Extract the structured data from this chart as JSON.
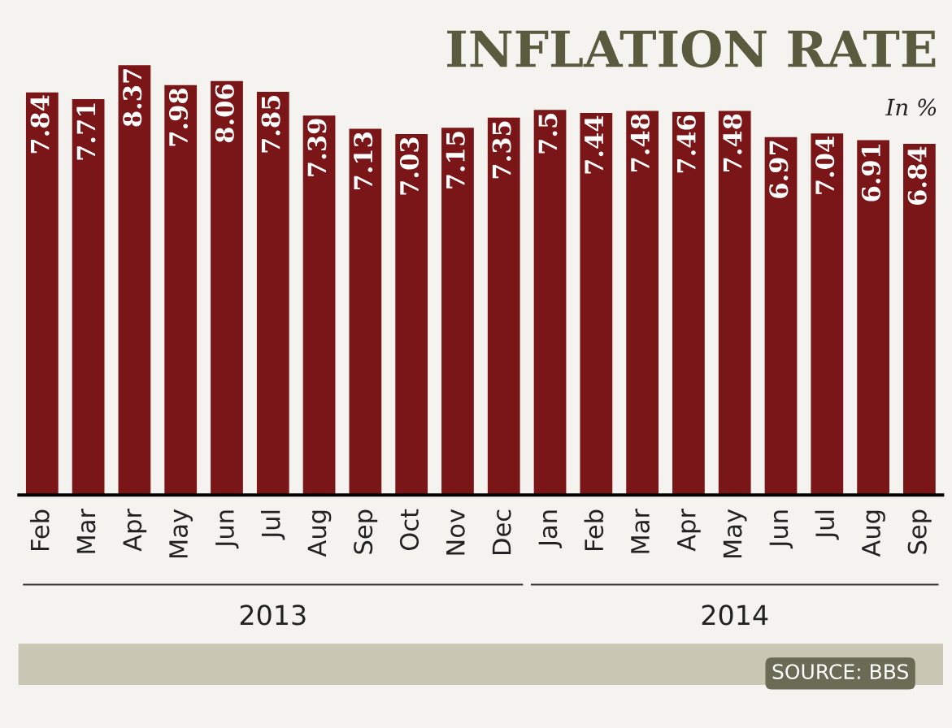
{
  "chart_data": {
    "type": "bar",
    "title": "INFLATION RATE",
    "subtitle": "In %",
    "categories": [
      "Feb",
      "Mar",
      "Apr",
      "May",
      "Jun",
      "Jul",
      "Aug",
      "Sep",
      "Oct",
      "Nov",
      "Dec",
      "Jan",
      "Feb",
      "Mar",
      "Apr",
      "May",
      "Jun",
      "Jul",
      "Aug",
      "Sep"
    ],
    "values": [
      7.84,
      7.71,
      8.37,
      7.98,
      8.06,
      7.85,
      7.39,
      7.13,
      7.03,
      7.15,
      7.35,
      7.5,
      7.44,
      7.48,
      7.46,
      7.48,
      6.97,
      7.04,
      6.91,
      6.84
    ],
    "value_labels": [
      "7.84",
      "7.71",
      "8.37",
      "7.98",
      "8.06",
      "7.85",
      "7.39",
      "7.13",
      "7.03",
      "7.15",
      "7.35",
      "7.5",
      "7.44",
      "7.48",
      "7.46",
      "7.48",
      "6.97",
      "7.04",
      "6.91",
      "6.84"
    ],
    "color": "#7a1518",
    "tick_labels": "x",
    "grid": false,
    "annotations": [
      "2013",
      "2014",
      "SOURCE: BBS"
    ]
  }
}
